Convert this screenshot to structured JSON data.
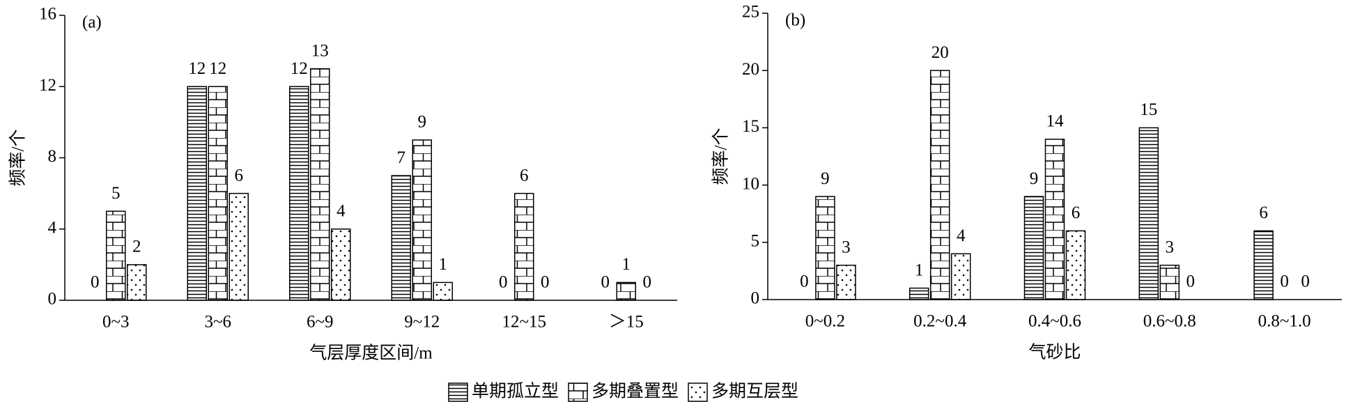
{
  "chart_data": [
    {
      "type": "bar",
      "label": "(a)",
      "y_label": "频率/个",
      "x_label": "气层厚度区间/m",
      "categories": [
        "0~3",
        "3~6",
        "6~9",
        "9~12",
        "12~15",
        "＞15"
      ],
      "series": [
        {
          "name": "单期孤立型",
          "pattern": "hlines",
          "color": "#000000",
          "values": [
            0,
            12,
            12,
            7,
            0,
            0
          ]
        },
        {
          "name": "多期叠置型",
          "pattern": "brick",
          "color": "#000000",
          "values": [
            5,
            12,
            13,
            9,
            6,
            1
          ]
        },
        {
          "name": "多期互层型",
          "pattern": "dots",
          "color": "#000000",
          "values": [
            2,
            6,
            4,
            1,
            0,
            0
          ]
        }
      ],
      "ylim": [
        0,
        16
      ],
      "yticks": [
        0,
        4,
        8,
        12,
        16
      ]
    },
    {
      "type": "bar",
      "label": "(b)",
      "y_label": "频率/个",
      "x_label": "气砂比",
      "categories": [
        "0~0.2",
        "0.2~0.4",
        "0.4~0.6",
        "0.6~0.8",
        "0.8~1.0"
      ],
      "series": [
        {
          "pattern": "hlines",
          "color": "#000000",
          "values": [
            0,
            1,
            9,
            15,
            6
          ]
        },
        {
          "pattern": "brick",
          "color": "#000000",
          "values": [
            9,
            20,
            14,
            3,
            0
          ]
        },
        {
          "pattern": "dots",
          "color": "#000000",
          "values": [
            3,
            4,
            6,
            0,
            0
          ]
        }
      ],
      "ylim": [
        0,
        25
      ],
      "yticks": [
        0,
        5,
        10,
        15,
        20,
        25
      ]
    }
  ]
}
